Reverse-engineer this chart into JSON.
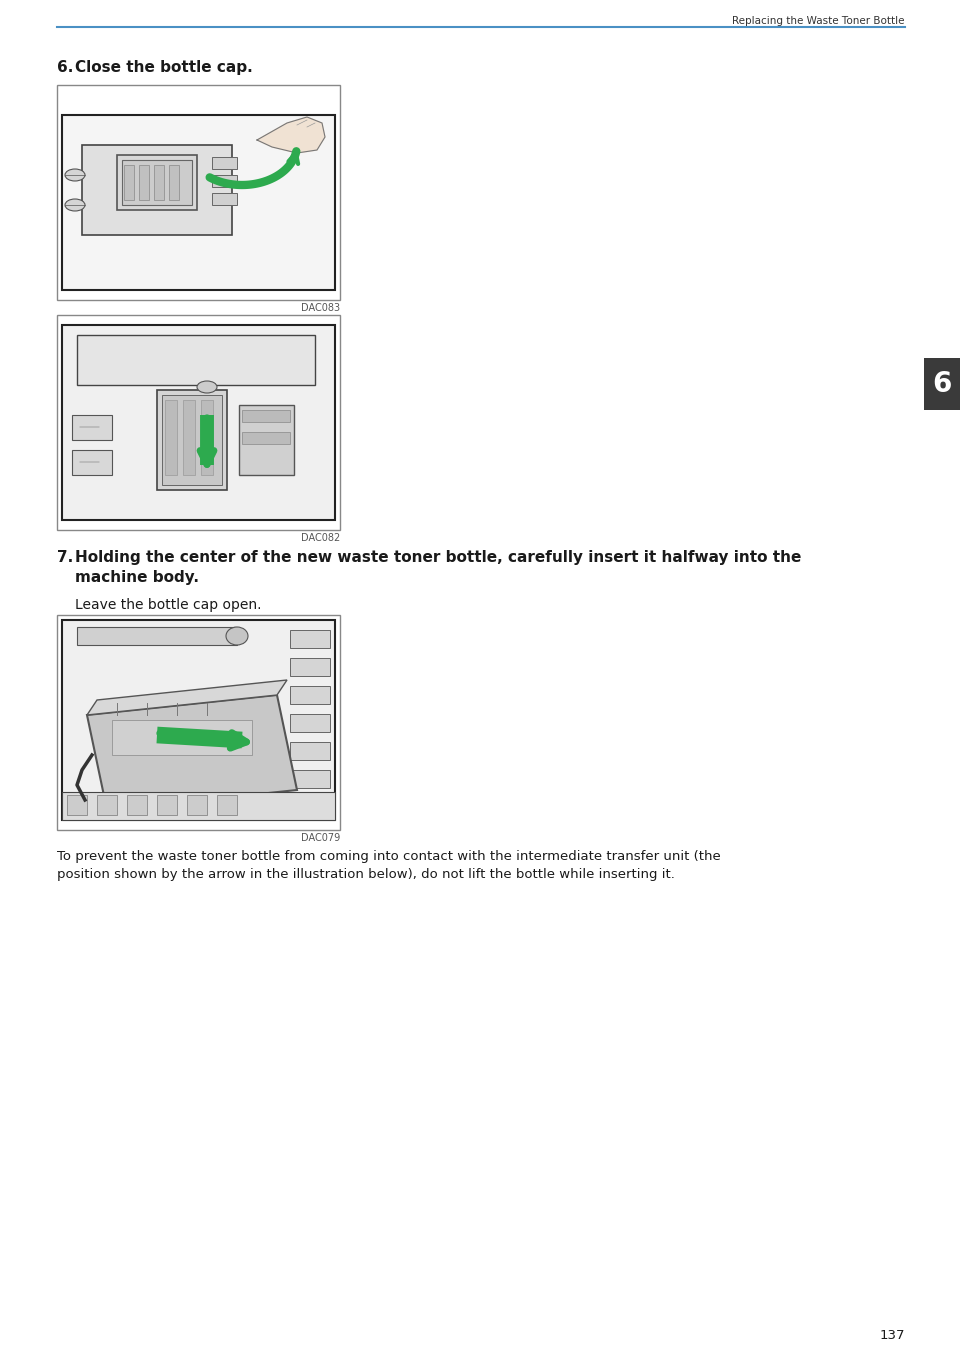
{
  "page_title": "Replacing the Waste Toner Bottle",
  "page_number": "137",
  "header_line_color": "#4a90c4",
  "background_color": "#ffffff",
  "text_color": "#1a1a1a",
  "gray_text": "#444444",
  "step6_label": "6.",
  "step6_text": "  Close the bottle cap.",
  "image1_caption": "DAC083",
  "image2_caption": "DAC082",
  "step7_label": "7.",
  "step7_text_line1": "  Holding the center of the new waste toner bottle, carefully insert it halfway into the",
  "step7_text_line2": "  machine body.",
  "step7_subtext": "Leave the bottle cap open.",
  "image3_caption": "DAC079",
  "note_line1": "To prevent the waste toner bottle from coming into contact with the intermediate transfer unit (the",
  "note_line2": "position shown by the arrow in the illustration below), do not lift the bottle while inserting it.",
  "tab_label": "6",
  "tab_color": "#3a3a3a",
  "tab_text_color": "#ffffff",
  "img_border_color": "#888888",
  "img_fill_color": "#f2f2f2",
  "green_arrow": "#2daa4e",
  "line_color": "#333333",
  "fig_w": 9.6,
  "fig_h": 13.6,
  "dpi": 100
}
